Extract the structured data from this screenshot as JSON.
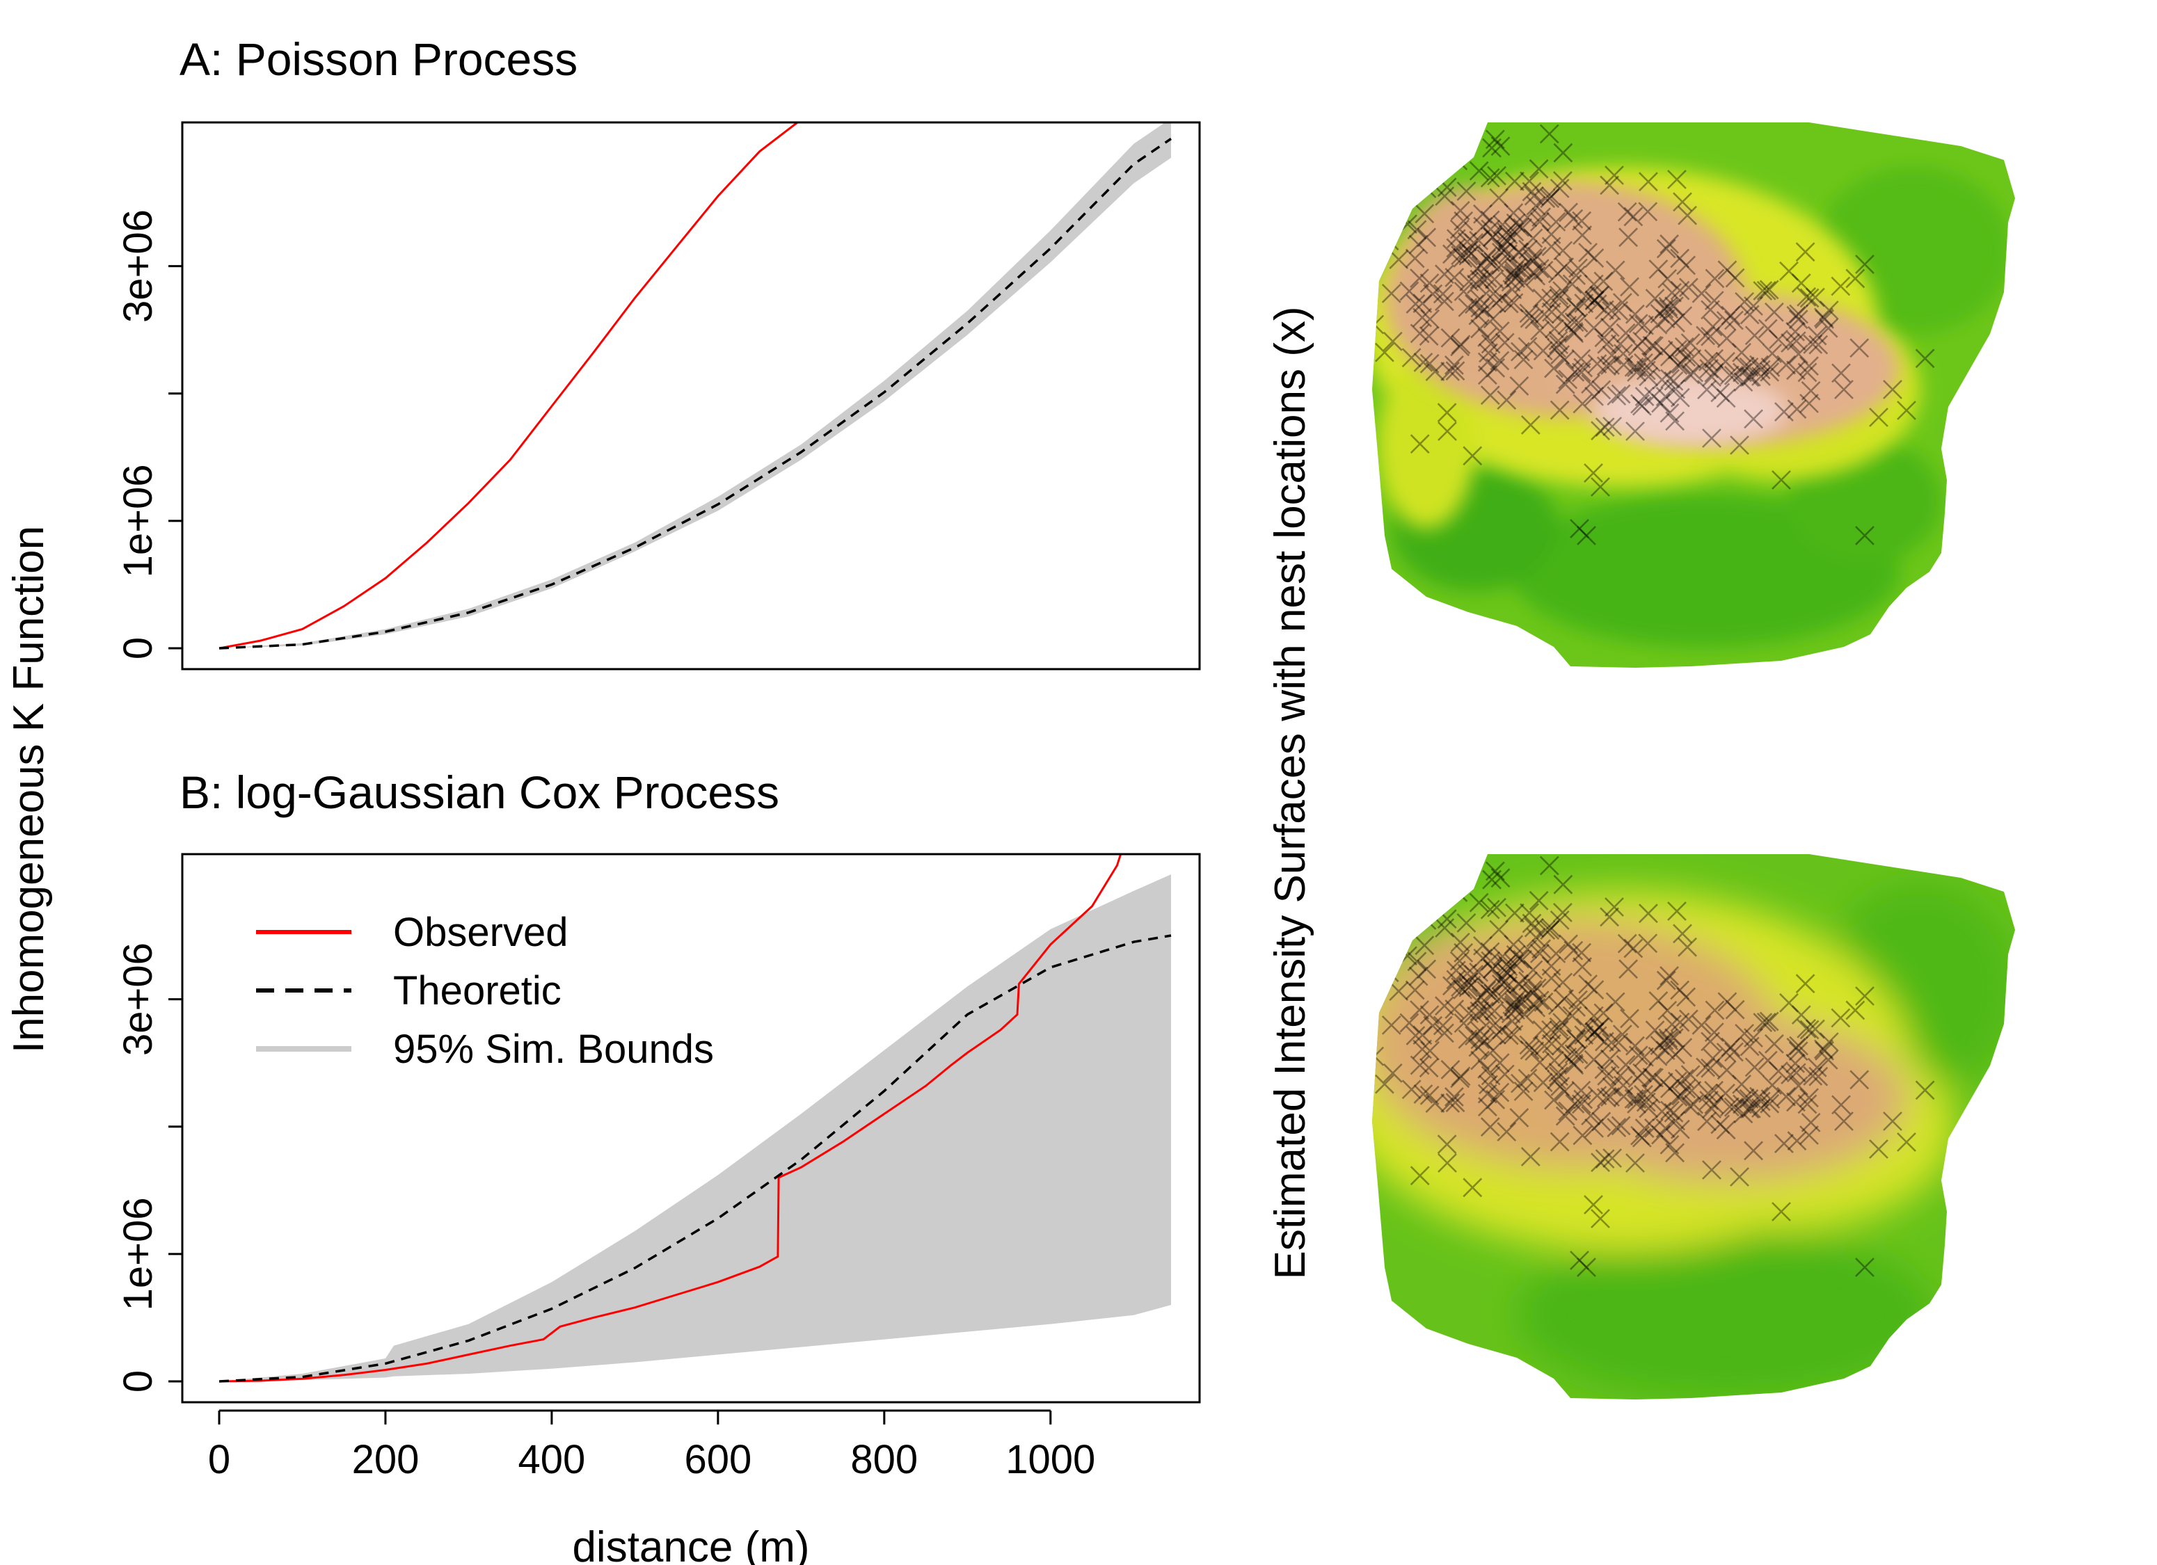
{
  "figure": {
    "ylabel_left": "Inhomogeneous K Function",
    "ylabel_right": "Estimated Intensity Surfaces with nest locations (x)",
    "xlabel": "distance (m)"
  },
  "chart_data": [
    {
      "type": "line",
      "title": "A: Poisson Process",
      "xlim": [
        0,
        1150
      ],
      "ylim": [
        0,
        4150000
      ],
      "yticks": [
        0,
        1000000,
        2000000,
        3000000
      ],
      "ytick_labels": [
        "0",
        "1e+06",
        "",
        "3e+06"
      ],
      "series": [
        {
          "name": "Observed",
          "color": "#ff0000",
          "x": [
            0,
            50,
            100,
            150,
            200,
            250,
            300,
            350,
            400,
            450,
            500,
            550,
            600,
            650,
            700
          ],
          "y": [
            0,
            60000,
            150000,
            330000,
            550000,
            830000,
            1140000,
            1480000,
            1900000,
            2320000,
            2750000,
            3150000,
            3550000,
            3900000,
            4150000
          ]
        },
        {
          "name": "Theoretic",
          "color": "#000000",
          "x": [
            0,
            100,
            200,
            300,
            400,
            500,
            600,
            700,
            800,
            900,
            1000,
            1100,
            1145
          ],
          "y": [
            0,
            30000,
            130000,
            280000,
            500000,
            790000,
            1130000,
            1540000,
            2010000,
            2550000,
            3140000,
            3800000,
            4000000
          ]
        },
        {
          "name": "95% Sim. Bounds",
          "color": "#cccccc",
          "x": [
            0,
            100,
            200,
            300,
            400,
            500,
            600,
            700,
            800,
            900,
            1000,
            1100,
            1145
          ],
          "upper": [
            0,
            40000,
            150000,
            310000,
            540000,
            830000,
            1190000,
            1600000,
            2100000,
            2650000,
            3280000,
            3960000,
            4160000
          ],
          "lower": [
            0,
            20000,
            110000,
            250000,
            470000,
            760000,
            1080000,
            1480000,
            1940000,
            2460000,
            3030000,
            3650000,
            3850000
          ]
        }
      ]
    },
    {
      "type": "line",
      "title": "B: log-Gaussian Cox Process",
      "xlim": [
        0,
        1150
      ],
      "ylim": [
        0,
        4150000
      ],
      "xticks": [
        0,
        200,
        400,
        600,
        800,
        1000
      ],
      "yticks": [
        0,
        1000000,
        2000000,
        3000000
      ],
      "ytick_labels": [
        "0",
        "1e+06",
        "",
        "3e+06"
      ],
      "legend": {
        "position": "top-left",
        "entries": [
          "Observed",
          "Theoretic",
          "95% Sim. Bounds"
        ]
      },
      "series": [
        {
          "name": "Observed",
          "color": "#ff0000",
          "x": [
            0,
            50,
            100,
            150,
            200,
            250,
            300,
            350,
            390,
            410,
            450,
            500,
            550,
            600,
            650,
            672,
            673,
            700,
            750,
            800,
            850,
            880,
            900,
            940,
            960,
            962,
            1000,
            1050,
            1080,
            1085
          ],
          "y": [
            0,
            5000,
            20000,
            50000,
            90000,
            140000,
            210000,
            280000,
            330000,
            430000,
            500000,
            580000,
            680000,
            780000,
            900000,
            980000,
            1600000,
            1680000,
            1880000,
            2100000,
            2320000,
            2480000,
            2580000,
            2760000,
            2880000,
            3120000,
            3430000,
            3730000,
            4050000,
            4150000
          ]
        },
        {
          "name": "Theoretic",
          "color": "#000000",
          "x": [
            0,
            100,
            200,
            300,
            400,
            500,
            600,
            700,
            800,
            900,
            1000,
            1100,
            1145
          ],
          "y": [
            0,
            35000,
            140000,
            320000,
            570000,
            890000,
            1280000,
            1740000,
            2280000,
            2880000,
            3250000,
            3450000,
            3500000
          ]
        },
        {
          "name": "95% Sim. Bounds",
          "color": "#cccccc",
          "x": [
            0,
            100,
            200,
            210,
            300,
            400,
            500,
            600,
            700,
            800,
            900,
            1000,
            1100,
            1145
          ],
          "upper": [
            0,
            60000,
            180000,
            280000,
            450000,
            780000,
            1180000,
            1620000,
            2100000,
            2600000,
            3100000,
            3550000,
            3850000,
            3980000
          ],
          "lower": [
            0,
            10000,
            30000,
            40000,
            60000,
            100000,
            150000,
            210000,
            270000,
            330000,
            390000,
            450000,
            520000,
            600000
          ]
        }
      ]
    }
  ]
}
